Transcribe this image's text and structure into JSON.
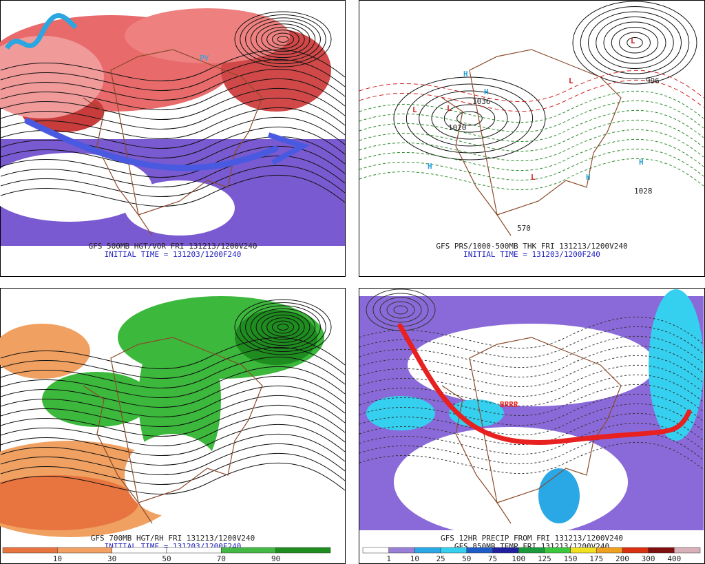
{
  "panels": [
    {
      "title": "GFS 500MB HGT/VOR FRI 131213/1200V240",
      "subtitle": "INITIAL TIME = 131203/1200F240",
      "annotation": "PV"
    },
    {
      "title": "GFS PRS/1000-500MB THK FRI 131213/1200V240",
      "subtitle": "INITIAL TIME = 131203/1200F240",
      "centers": [
        "L",
        "L",
        "L",
        "L",
        "L",
        "H",
        "H",
        "H",
        "H",
        "H"
      ],
      "isobar_labels": [
        "1036",
        "1020",
        "1028",
        "996",
        "570"
      ]
    },
    {
      "title": "GFS 700MB HGT/RH FRI 131213/1200V240",
      "subtitle": "INITIAL TIME = 131203/1200F240",
      "colorbar": {
        "labels": [
          10,
          30,
          50,
          70,
          90
        ],
        "colors": [
          "#e8743f",
          "#f2a064",
          "#ffffff",
          "#ffffff",
          "#44b844",
          "#1e8c1e"
        ]
      }
    },
    {
      "title": "GFS 12HR PRECIP FROM FRI 131213/1200V240",
      "subtitle": "GFS 850MB TEMP FRI 131213/1200V240",
      "annotation": "BRRR",
      "colorbar": {
        "labels": [
          1,
          10,
          25,
          50,
          75,
          100,
          125,
          150,
          175,
          200,
          300,
          400
        ],
        "colors": [
          "#ffffff",
          "#9a7fd6",
          "#2aa8e6",
          "#35d0f0",
          "#1e5cc8",
          "#2020a0",
          "#1a9a3a",
          "#3cc83c",
          "#f0e020",
          "#f0a020",
          "#d83010",
          "#801010",
          "#d8b0b8"
        ]
      }
    }
  ]
}
